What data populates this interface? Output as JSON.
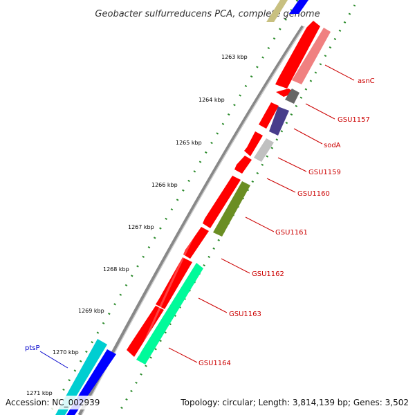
{
  "title": "Geobacter sulfurreducens PCA, complete genome",
  "footer": {
    "accession": "Accession: NC_002939",
    "summary": "Topology: circular; Length: 3,814,139 bp; Genes: 3,502"
  },
  "ticks": [
    "1263 kbp",
    "1264 kbp",
    "1265 kbp",
    "1266 kbp",
    "1267 kbp",
    "1268 kbp",
    "1269 kbp",
    "1270 kbp",
    "1271 kbp"
  ],
  "colors": {
    "forward_cds": "#ff0000",
    "backbone": "#808080",
    "tick_marks": "#2a8a2a",
    "label_reverse": "#cc0000",
    "label_forward": "#0000cc"
  },
  "genes": [
    {
      "label": "asnC",
      "color": "#f08080",
      "strand": "reverse"
    },
    {
      "label": "GSU1157",
      "color": "#666666",
      "strand": "reverse"
    },
    {
      "label": "sodA",
      "color": "#483d8b",
      "strand": "reverse"
    },
    {
      "label": "GSU1159",
      "color": "#c0c0c0",
      "strand": "reverse"
    },
    {
      "label": "GSU1160",
      "color": "#ff0000",
      "strand": "reverse"
    },
    {
      "label": "GSU1161",
      "color": "#6b8e23",
      "strand": "reverse"
    },
    {
      "label": "GSU1162",
      "color": "#ff0000",
      "strand": "reverse"
    },
    {
      "label": "GSU1163",
      "color": "#00fa9a",
      "strand": "reverse"
    },
    {
      "label": "GSU1164",
      "color": "#00fa9a",
      "strand": "reverse"
    },
    {
      "label": "ptsP",
      "color": "#00ced1",
      "strand": "forward"
    }
  ]
}
